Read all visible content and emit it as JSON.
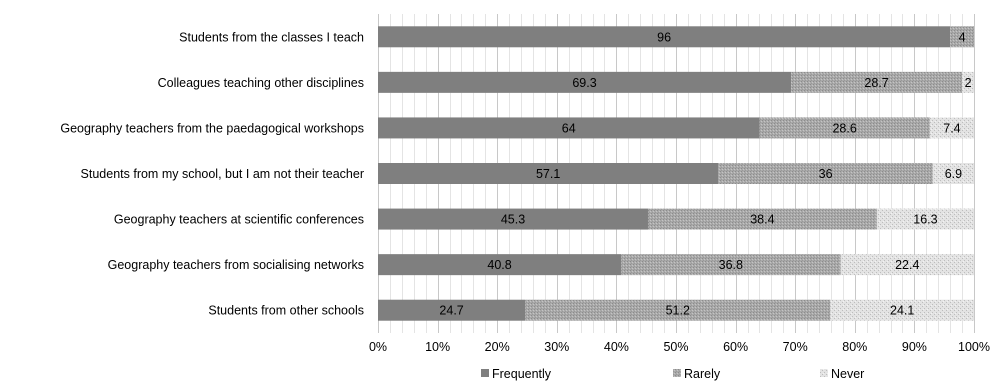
{
  "chart_data": {
    "type": "bar",
    "orientation": "horizontal",
    "stacked": true,
    "categories": [
      "Students from the classes I teach",
      "Colleagues teaching other disciplines",
      "Geography teachers from the paedagogical workshops",
      "Students from my school, but I am not their teacher",
      "Geography teachers at scientific conferences",
      "Geography teachers from socialising networks",
      "Students from other schools"
    ],
    "series": [
      {
        "name": "Frequently",
        "values": [
          96,
          69.3,
          64,
          57.1,
          45.3,
          40.8,
          24.7
        ],
        "color": "#7f7f7f"
      },
      {
        "name": "Rarely",
        "values": [
          4,
          28.7,
          28.6,
          36,
          38.4,
          36.8,
          51.2
        ],
        "color": "#a6a6a6"
      },
      {
        "name": "Never",
        "values": [
          null,
          2,
          7.4,
          6.9,
          16.3,
          22.4,
          24.1
        ],
        "color": "#d9d9d9"
      }
    ],
    "xlim": [
      0,
      100
    ],
    "x_ticks": [
      "0%",
      "10%",
      "20%",
      "30%",
      "40%",
      "50%",
      "60%",
      "70%",
      "80%",
      "90%",
      "100%"
    ],
    "grid": true,
    "legend": "bottom"
  }
}
